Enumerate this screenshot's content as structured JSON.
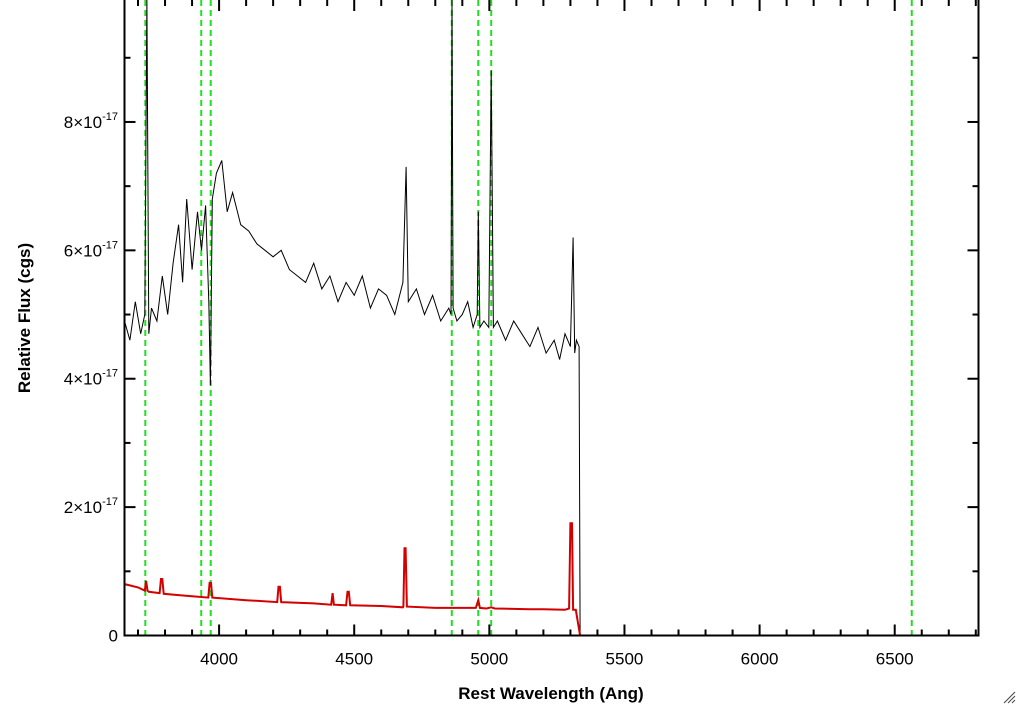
{
  "chart_data": {
    "type": "line",
    "title": "",
    "xlabel": "Rest Wavelength (Ang)",
    "ylabel": "Relative Flux (cgs)",
    "xlim": [
      3650,
      6810
    ],
    "ylim": [
      0,
      9.9e-17
    ],
    "y_exponent_label": "-17",
    "x_ticks": [
      {
        "value": 4000,
        "label": "4000"
      },
      {
        "value": 4500,
        "label": "4500"
      },
      {
        "value": 5000,
        "label": "5000"
      },
      {
        "value": 5500,
        "label": "5500"
      },
      {
        "value": 6000,
        "label": "6000"
      },
      {
        "value": 6500,
        "label": "6500"
      }
    ],
    "x_minor_step": 100,
    "y_ticks": [
      {
        "value": 0,
        "mantissa": "0"
      },
      {
        "value": 2e-17,
        "mantissa": "2×10"
      },
      {
        "value": 4e-17,
        "mantissa": "4×10"
      },
      {
        "value": 6e-17,
        "mantissa": "6×10"
      },
      {
        "value": 8e-17,
        "mantissa": "8×10"
      }
    ],
    "y_minor_step": 1e-17,
    "grid": false,
    "series": [
      {
        "color": "#000000",
        "x": [
          3650,
          3670,
          3690,
          3710,
          3725,
          3733,
          3740,
          3750,
          3770,
          3790,
          3810,
          3830,
          3850,
          3865,
          3880,
          3900,
          3920,
          3935,
          3950,
          3962,
          3968,
          3975,
          3990,
          4010,
          4030,
          4050,
          4080,
          4110,
          4140,
          4170,
          4200,
          4230,
          4260,
          4290,
          4320,
          4350,
          4380,
          4410,
          4440,
          4470,
          4500,
          4530,
          4560,
          4590,
          4620,
          4650,
          4680,
          4692,
          4700,
          4730,
          4760,
          4790,
          4820,
          4850,
          4858,
          4862,
          4866,
          4880,
          4900,
          4920,
          4940,
          4955,
          4959,
          4965,
          4980,
          4998,
          5007,
          5015,
          5030,
          5060,
          5090,
          5120,
          5150,
          5180,
          5210,
          5240,
          5260,
          5280,
          5300,
          5310,
          5316,
          5322,
          5332,
          5336,
          5345,
          5400,
          5600,
          5800,
          6000,
          6200,
          6400,
          6600,
          6810
        ],
        "y": [
          4.9e-17,
          4.6e-17,
          5.2e-17,
          4.7e-17,
          5e-17,
          9.9e-17,
          4.7e-17,
          5.1e-17,
          4.9e-17,
          5.6e-17,
          5e-17,
          5.8e-17,
          6.4e-17,
          5.5e-17,
          6.8e-17,
          5.7e-17,
          6.6e-17,
          6e-17,
          6.7e-17,
          5.2e-17,
          3.9e-17,
          6.8e-17,
          7.2e-17,
          7.4e-17,
          6.6e-17,
          6.9e-17,
          6.4e-17,
          6.3e-17,
          6.1e-17,
          6e-17,
          5.9e-17,
          6e-17,
          5.7e-17,
          5.6e-17,
          5.5e-17,
          5.8e-17,
          5.4e-17,
          5.6e-17,
          5.2e-17,
          5.5e-17,
          5.3e-17,
          5.6e-17,
          5.1e-17,
          5.4e-17,
          5.3e-17,
          5e-17,
          5.5e-17,
          7.3e-17,
          5.2e-17,
          5.4e-17,
          5e-17,
          5.3e-17,
          4.9e-17,
          5.1e-17,
          5e-17,
          9.9e-17,
          5.1e-17,
          4.9e-17,
          5e-17,
          5.2e-17,
          4.8e-17,
          5e-17,
          6.6e-17,
          4.8e-17,
          4.9e-17,
          4.8e-17,
          8.8e-17,
          4.8e-17,
          4.9e-17,
          4.6e-17,
          4.9e-17,
          4.7e-17,
          4.5e-17,
          4.8e-17,
          4.4e-17,
          4.6e-17,
          4.3e-17,
          4.7e-17,
          4.5e-17,
          6.2e-17,
          4.4e-17,
          4.6e-17,
          4.5e-17,
          0,
          0,
          0,
          0,
          0,
          0,
          0,
          0,
          0,
          0
        ]
      },
      {
        "color": "#d40000",
        "x": [
          3650,
          3700,
          3725,
          3730,
          3735,
          3740,
          3780,
          3785,
          3790,
          3795,
          3850,
          3900,
          3960,
          3965,
          3970,
          3975,
          4100,
          4215,
          4220,
          4225,
          4230,
          4350,
          4415,
          4420,
          4425,
          4470,
          4475,
          4480,
          4485,
          4600,
          4680,
          4682,
          4686,
          4690,
          4695,
          4800,
          4900,
          4950,
          4959,
          4965,
          4990,
          5007,
          5020,
          5150,
          5200,
          5280,
          5295,
          5300,
          5306,
          5310,
          5320,
          5336,
          5345,
          5400,
          5600,
          5800,
          6000,
          6200,
          6400,
          6600,
          6810
        ],
        "y": [
          8e-18,
          7.5e-18,
          7e-18,
          8.5e-18,
          7e-18,
          6.8e-18,
          6.6e-18,
          8.8e-18,
          8.8e-18,
          6.5e-18,
          6.3e-18,
          6.1e-18,
          5.9e-18,
          8.2e-18,
          8.2e-18,
          5.9e-18,
          5.5e-18,
          5.2e-18,
          7.6e-18,
          7.6e-18,
          5.2e-18,
          5e-18,
          4.8e-18,
          6.6e-18,
          4.8e-18,
          4.7e-18,
          6.8e-18,
          6.8e-18,
          4.7e-18,
          4.6e-18,
          4.4e-18,
          4.5e-18,
          1.36e-17,
          1.36e-17,
          4.5e-18,
          4.3e-18,
          4.3e-18,
          4.3e-18,
          5.5e-18,
          4.3e-18,
          4.2e-18,
          4.4e-18,
          4.2e-18,
          4.1e-18,
          4.1e-18,
          4e-18,
          4.2e-18,
          1.75e-17,
          1.75e-17,
          4e-18,
          4e-18,
          0,
          0,
          0,
          0,
          0,
          0,
          0,
          0,
          0,
          0
        ]
      }
    ],
    "reference_lines": {
      "color": "#22dd22",
      "style": "dashed",
      "x": [
        3727,
        3934,
        3969,
        4861,
        4959,
        5007,
        6563
      ]
    }
  }
}
